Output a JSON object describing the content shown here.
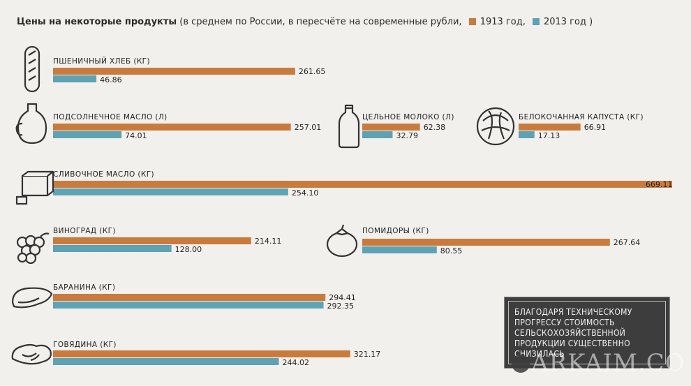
{
  "header": {
    "title_bold": "Цены на некоторые продукты",
    "title_rest": "(в среднем по России, в пересчёте на современные рубли,",
    "legend_1913": "1913 год,",
    "legend_2013": "2013 год )",
    "close": ""
  },
  "colors": {
    "y1913": "#c97b3e",
    "y2013": "#5ea2b4"
  },
  "chart_data": {
    "type": "bar",
    "orientation": "horizontal",
    "series_names": [
      "1913 год",
      "2013 год"
    ],
    "items": [
      {
        "label": "ПШЕНИЧНЫЙ ХЛЕБ (КГ)",
        "v1913": 261.65,
        "v2013": 46.86,
        "t1913": "261.65",
        "t2013": "46.86",
        "icon": "bread-icon"
      },
      {
        "label": "ПОДСОЛНЕЧНОЕ МАСЛО (Л)",
        "v1913": 257.01,
        "v2013": 74.01,
        "t1913": "257.01",
        "t2013": "74.01",
        "icon": "oil-jug-icon"
      },
      {
        "label": "ЦЕЛЬНОЕ МОЛОКО (Л)",
        "v1913": 62.38,
        "v2013": 32.79,
        "t1913": "62.38",
        "t2013": "32.79",
        "icon": "milk-bottle-icon"
      },
      {
        "label": "БЕЛОКОЧАННАЯ КАПУСТА (КГ)",
        "v1913": 66.91,
        "v2013": 17.13,
        "t1913": "66.91",
        "t2013": "17.13",
        "icon": "cabbage-icon"
      },
      {
        "label": "СЛИВОЧНОЕ МАСЛО (КГ)",
        "v1913": 669.11,
        "v2013": 254.1,
        "t1913": "669.11",
        "t2013": "254.10",
        "icon": "butter-icon"
      },
      {
        "label": "ВИНОГРАД (КГ)",
        "v1913": 214.11,
        "v2013": 128.0,
        "t1913": "214.11",
        "t2013": "128.00",
        "icon": "grapes-icon"
      },
      {
        "label": "ПОМИДОРЫ (КГ)",
        "v1913": 267.64,
        "v2013": 80.55,
        "t1913": "267.64",
        "t2013": "80.55",
        "icon": "tomato-icon"
      },
      {
        "label": "БАРАНИНА (КГ)",
        "v1913": 294.41,
        "v2013": 292.35,
        "t1913": "294.41",
        "t2013": "292.35",
        "icon": "lamb-icon"
      },
      {
        "label": "ГОВЯДИНА (КГ)",
        "v1913": 321.17,
        "v2013": 244.02,
        "t1913": "321.17",
        "t2013": "244.02",
        "icon": "beef-icon"
      }
    ]
  },
  "note": {
    "lines": [
      "БЛАГОДАРЯ ТЕХНИЧЕСКОМУ",
      "ПРОГРЕССУ СТОИМОСТЬ",
      "СЕЛЬСКОХОЗЯЙСТВЕННОЙ",
      "ПРОДУКЦИИ СУЩЕСТВЕННО",
      "СНИЗИЛАСЬ"
    ]
  },
  "watermark": "ARKAIM.CO"
}
